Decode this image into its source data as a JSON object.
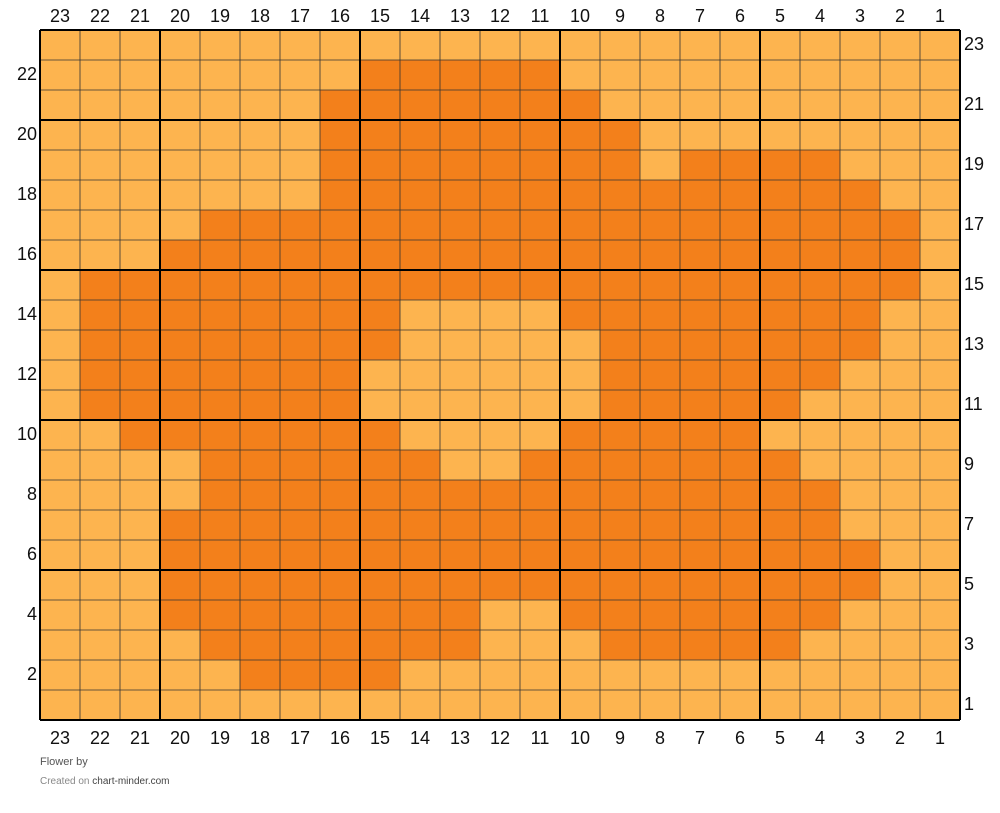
{
  "footer": {
    "title": "Flower",
    "by_label": "by",
    "created_on_label": "Created on",
    "site": "chart-minder.com"
  },
  "colors": {
    "light": "#FDB44F",
    "dark": "#F3801B",
    "thin_line": "#333333",
    "thick_line": "#000000"
  },
  "chart_data": {
    "type": "grid",
    "columns": 23,
    "rows": 23,
    "column_labels_right_to_left": true,
    "row_labels_bottom_to_top": true,
    "legend": {
      "L": "light",
      "D": "dark"
    },
    "rows_top_to_bottom": [
      "LLLLLLLLLLLLLLLLLLLLLLL",
      "LLLLLLLLDDDDDLLLLLLLLLL",
      "LLLLLLLDDDDDDDLLLLLLLLL",
      "LLLLLLLDDDDDDDDLLLLLLLL",
      "LLLLLLLDDDDDDDDLDDDDLLL",
      "LLLLLLLDDDDDDDDDDDDDDLL",
      "LLLLDDDDDDDDDDDDDDDDDDL",
      "LLLDDDDDDDDDDDDDDDDDDDL",
      "LDDDDDDDDDDDDDDDDDDDDDL",
      "LDDDDDDDDLLLLDDDDDDDDLL",
      "LDDDDDDDDLLLLLDDDDDDDLL",
      "LDDDDDDDLLLLLLDDDDDDLLL",
      "LDDDDDDDLLLLLLDDDDDLLLL",
      "LLDDDDDDDLLLLDDDDDLLLLL",
      "LLLLDDDDDDLLDDDDDDDLLLL",
      "LLLLDDDDDDDDDDDDDDDDLLL",
      "LLLDDDDDDDDDDDDDDDDDLLL",
      "LLLDDDDDDDDDDDDDDDDDDLL",
      "LLLDDDDDDDDDDDDDDDDDDLL",
      "LLLDDDDDDDDLLDDDDDDDLLL",
      "LLLLDDDDDDDLLLDDDDDLLLL",
      "LLLLLDDDDLLLLLLLLLLLLLL",
      "LLLLLLLLLLLLLLLLLLLLLLL"
    ]
  }
}
